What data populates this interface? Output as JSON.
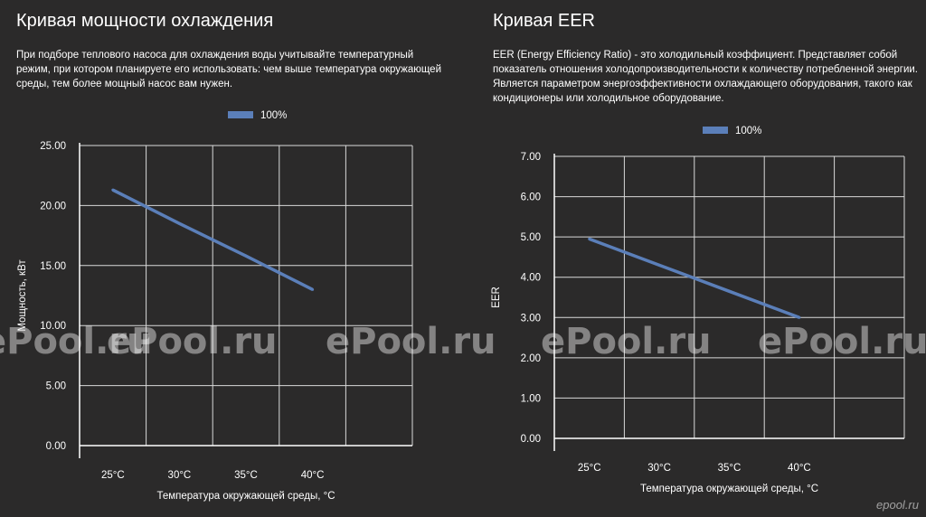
{
  "left": {
    "title": "Кривая мощности охлаждения",
    "description": "При подборе теплового насоса для охлаждения воды учитывайте температурный режим, при котором планируете его использовать: чем выше температура окружающей среды, тем более мощный насос вам нужен."
  },
  "right": {
    "title": "Кривая EER",
    "description": "EER (Energy Efficiency Ratio) - это холодильный коэффициент. Представляет собой показатель отношения холодопроизводительности к количеству потребленной энергии. Является параметром энергоэффективности охлаждающего оборудования, такого как кондиционеры или холодильное оборудование."
  },
  "watermark": "ePool.ru",
  "corner_logo": "epool.ru",
  "colors": {
    "background": "#2b2a2a",
    "line": "#5b7fb9",
    "grid": "#d9d9d9",
    "axis": "#ffffff"
  },
  "chart_data": [
    {
      "type": "line",
      "categories": [
        "25°C",
        "30°C",
        "35°C",
        "40°C"
      ],
      "xlabel": "Температура окружающей среды, °С",
      "ylabel": "Мощность, кВт",
      "ylim": [
        0,
        25
      ],
      "yticks": [
        "0.00",
        "5.00",
        "10.00",
        "15.00",
        "20.00",
        "25.00"
      ],
      "grid": true,
      "legend_position": "top-center",
      "series": [
        {
          "name": "100%",
          "values": [
            21.3,
            18.5,
            15.8,
            13.0
          ]
        }
      ]
    },
    {
      "type": "line",
      "categories": [
        "25°C",
        "30°C",
        "35°C",
        "40°C"
      ],
      "xlabel": "Температура окружающей среды, °С",
      "ylabel": "EER",
      "ylim": [
        0,
        7
      ],
      "yticks": [
        "0.00",
        "1.00",
        "2.00",
        "3.00",
        "4.00",
        "5.00",
        "6.00",
        "7.00"
      ],
      "grid": true,
      "legend_position": "top-center",
      "series": [
        {
          "name": "100%",
          "values": [
            4.95,
            4.3,
            3.65,
            3.0
          ]
        }
      ]
    }
  ]
}
